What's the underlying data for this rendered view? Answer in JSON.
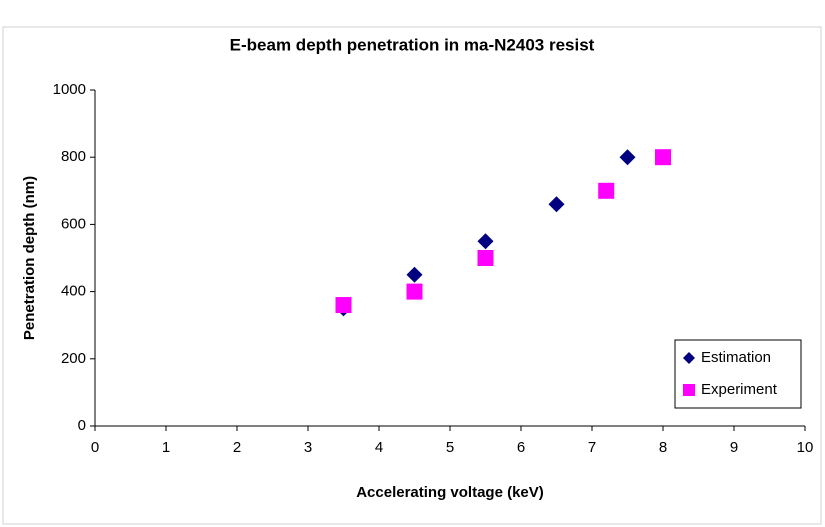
{
  "chart_data": {
    "type": "scatter",
    "title": "E-beam depth penetration in ma-N2403 resist",
    "x_label": "Accelerating voltage (keV)",
    "y_label": "Penetration depth (nm)",
    "xlim": [
      0,
      10
    ],
    "xticks": [
      0,
      1,
      2,
      3,
      4,
      5,
      6,
      7,
      8,
      9,
      10
    ],
    "ylim": [
      0,
      1000
    ],
    "yticks": [
      0,
      200,
      400,
      600,
      800,
      1000
    ],
    "grid": false,
    "legend": "lower right",
    "series": [
      {
        "name": "Estimation",
        "color": "#000080",
        "marker": "diamond",
        "x": [
          3.5,
          4.5,
          5.5,
          6.5,
          7.5
        ],
        "values": [
          350,
          450,
          550,
          660,
          800
        ]
      },
      {
        "name": "Experiment",
        "color": "#ff00ff",
        "marker": "square",
        "x": [
          3.5,
          4.5,
          5.5,
          7.2,
          8
        ],
        "values": [
          360,
          400,
          500,
          700,
          800
        ]
      }
    ]
  }
}
